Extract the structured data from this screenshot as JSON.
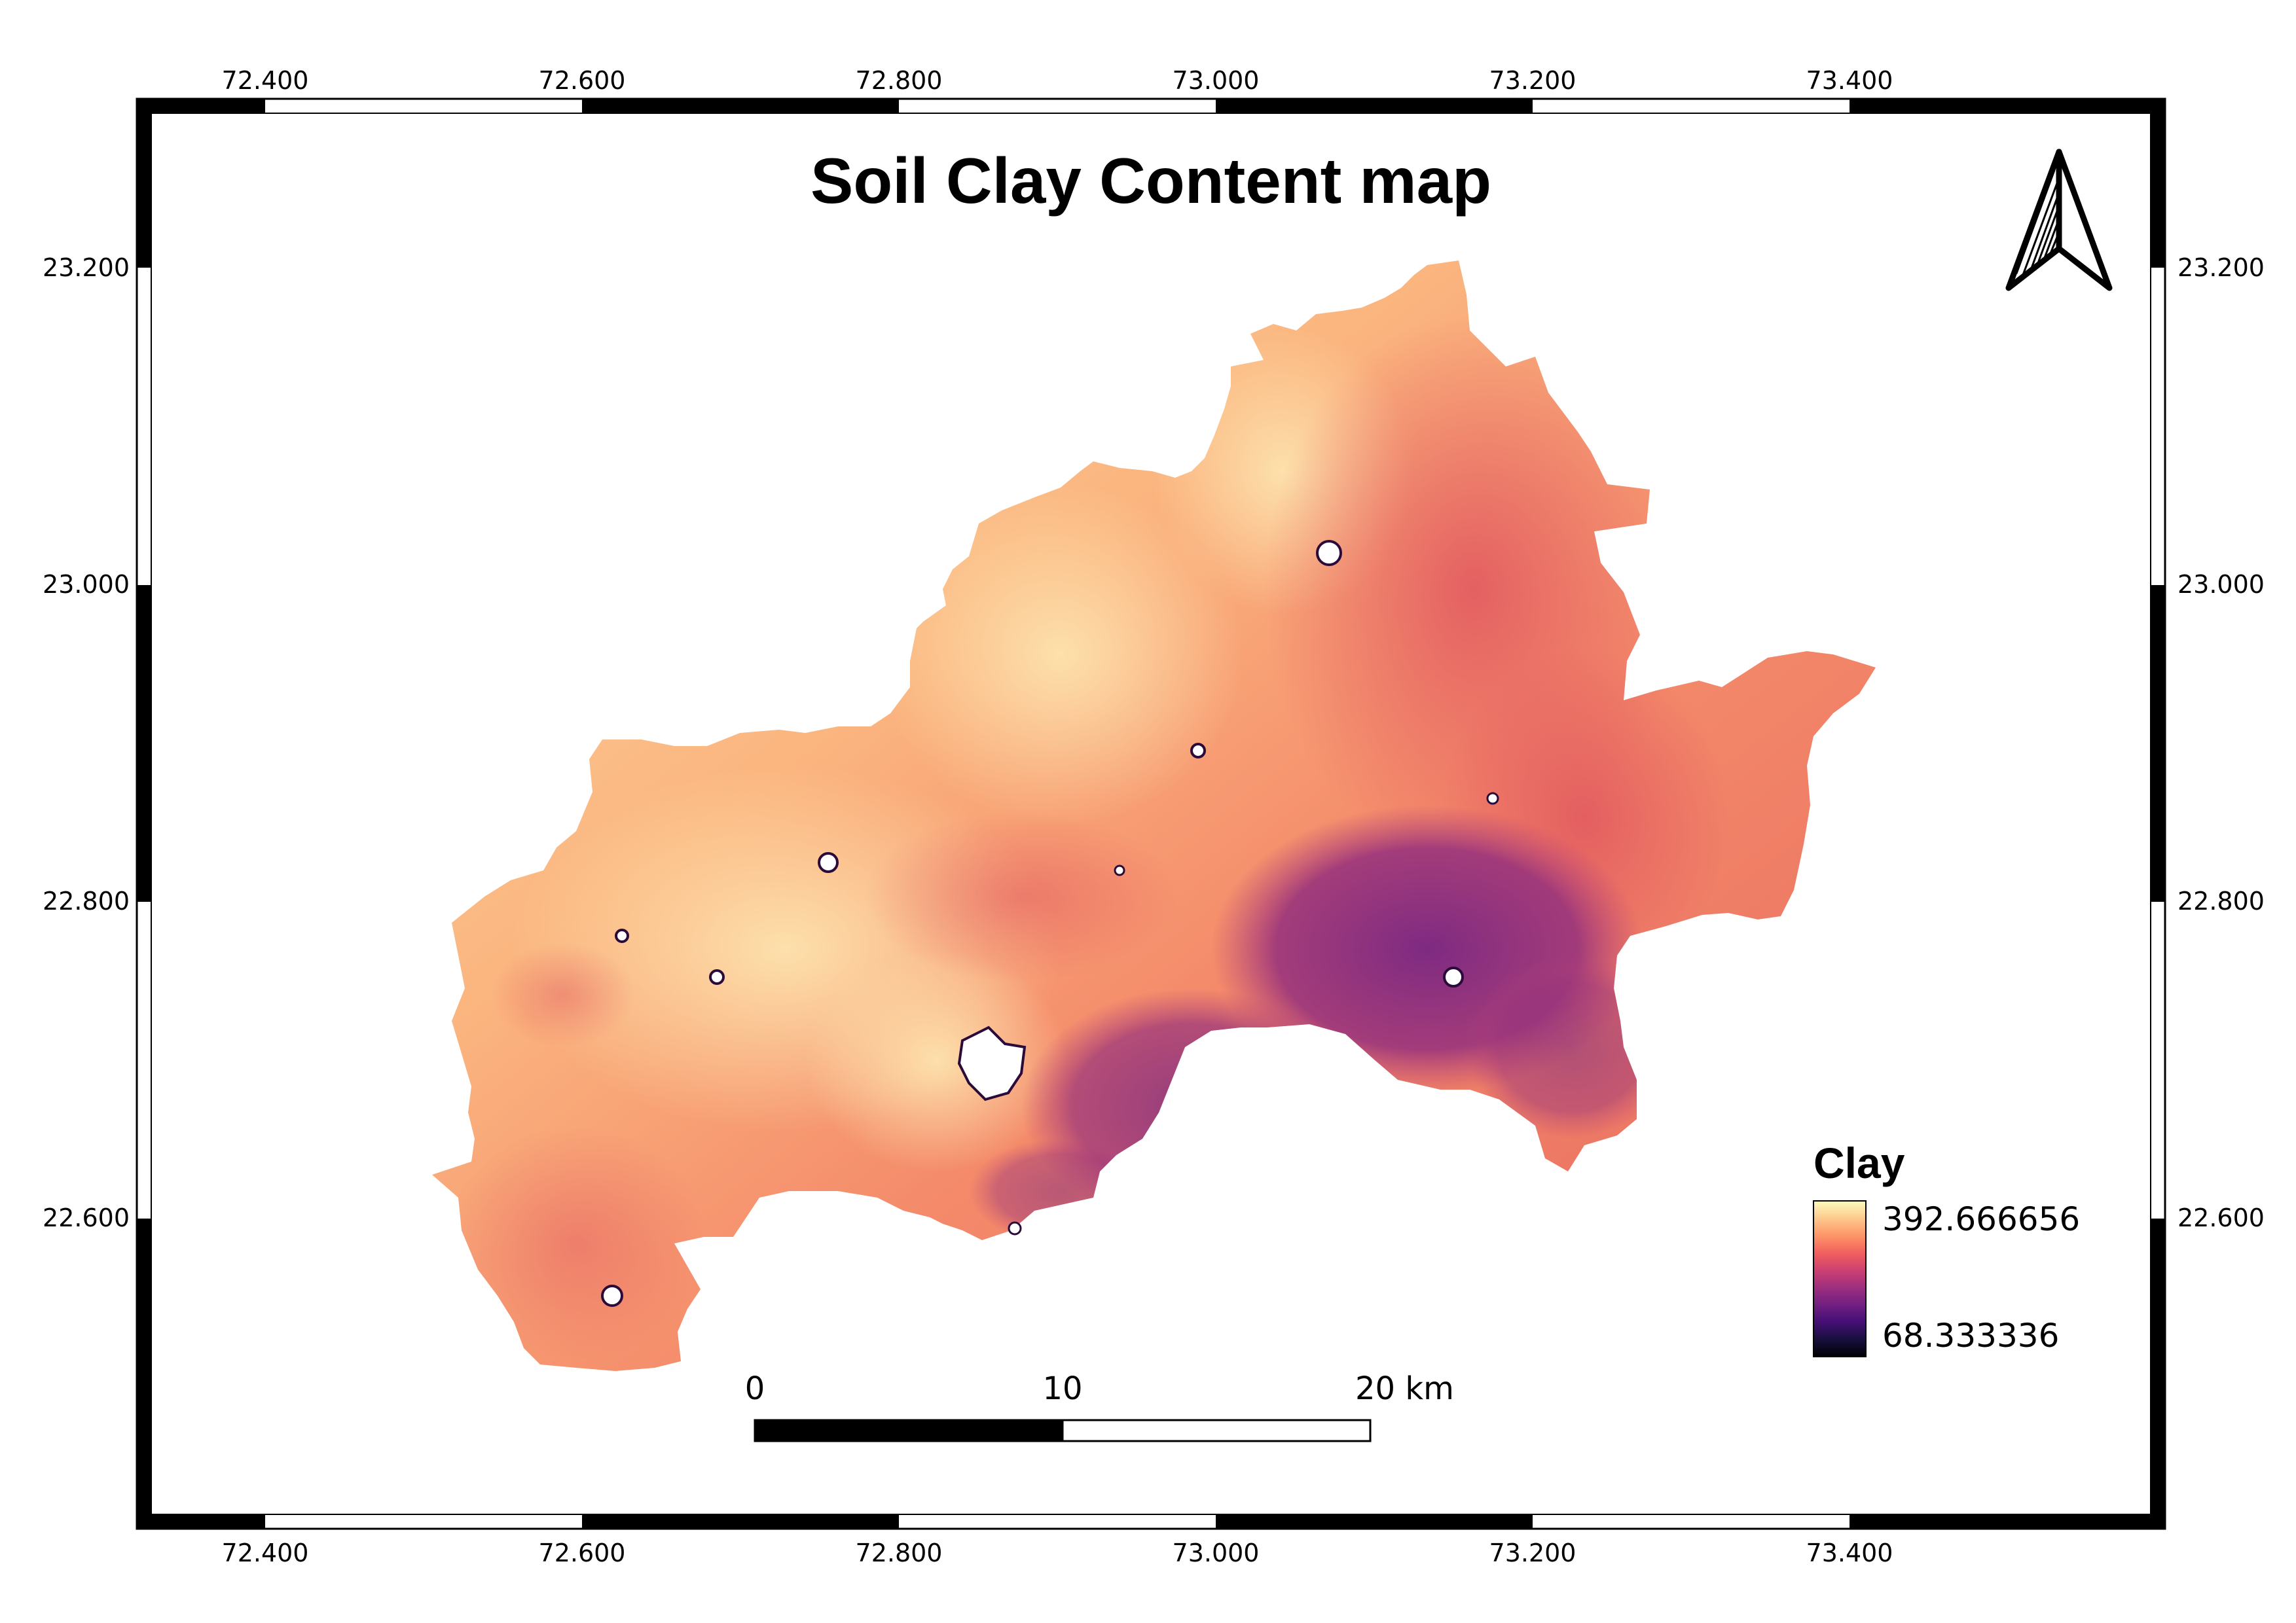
{
  "map": {
    "title": "Soil Clay Content map",
    "x_ticks": [
      "72.400",
      "72.600",
      "72.800",
      "73.000",
      "73.200",
      "73.400"
    ],
    "y_ticks": [
      "23.200",
      "23.000",
      "22.800",
      "22.600"
    ]
  },
  "legend": {
    "title": "Clay",
    "max_label": "392.666656",
    "min_label": "68.333336",
    "max_value": 392.666656,
    "min_value": 68.333336,
    "colors": [
      "#fcfdbf",
      "#fec98d",
      "#fd9567",
      "#f1605d",
      "#cd4071",
      "#9e2f7f",
      "#721f81",
      "#440f76",
      "#180f3d",
      "#000004"
    ]
  },
  "scale_bar": {
    "labels": [
      "0",
      "10",
      "20 km"
    ]
  },
  "north_arrow": {
    "icon": "north-arrow-icon"
  }
}
